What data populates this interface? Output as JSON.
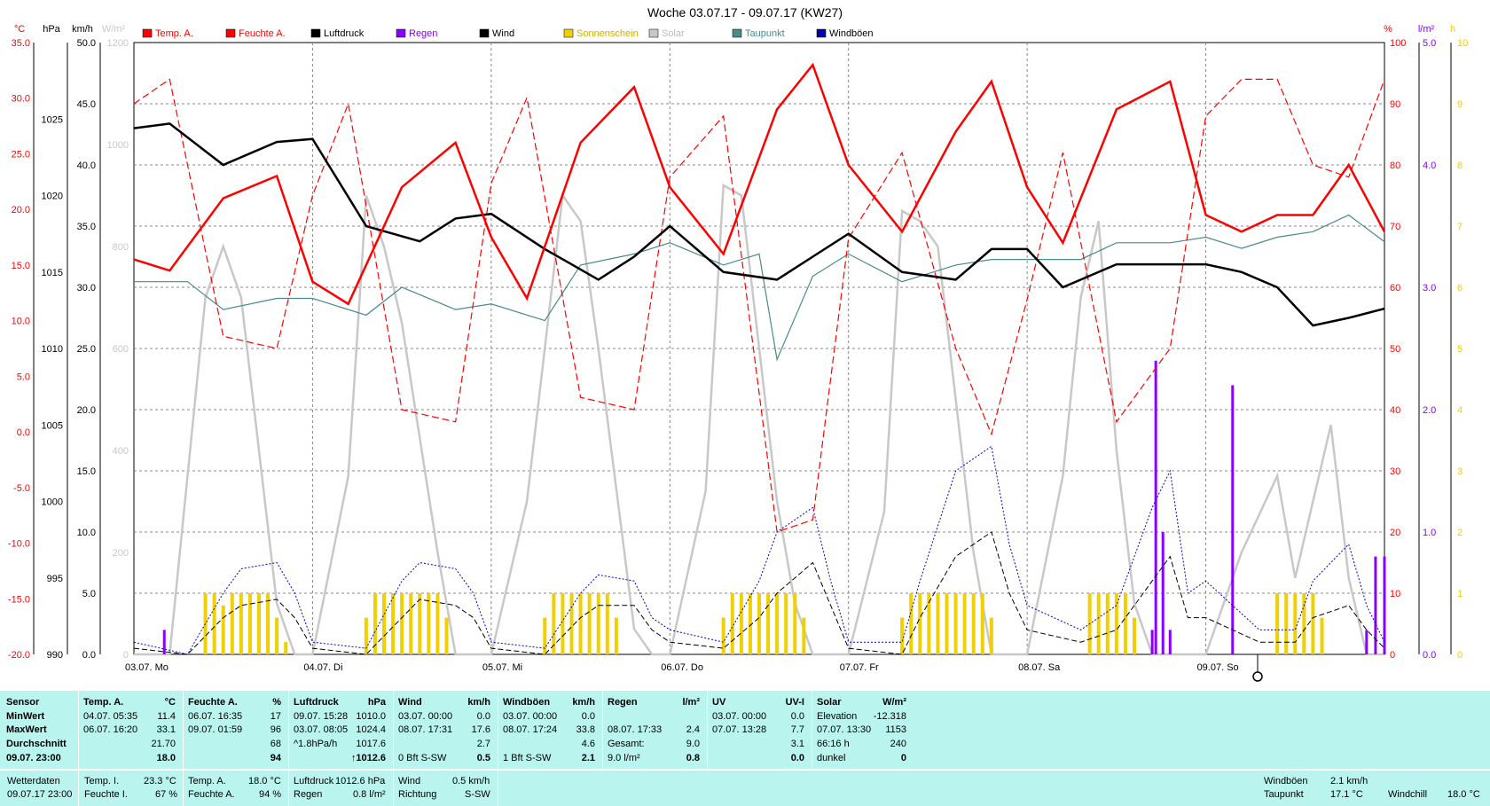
{
  "chart_data": {
    "type": "line",
    "title": "Woche 03.07.17 - 09.07.17 (KW27)",
    "x_axis": {
      "range": [
        0,
        7
      ],
      "day_labels": [
        "03.07. Mo",
        "04.07. Di",
        "05.07. Mi",
        "06.07. Do",
        "07.07. Fr",
        "08.07. Sa",
        "09.07. So"
      ]
    },
    "axes": {
      "temp": {
        "unit": "°C",
        "range": [
          -20,
          35
        ],
        "ticks": [
          "35.0",
          "30.0",
          "25.0",
          "20.0",
          "15.0",
          "10.0",
          "5.0",
          "0.0",
          "-5.0",
          "-10.0",
          "-15.0",
          "-20.0"
        ]
      },
      "press": {
        "unit": "hPa",
        "range": [
          990,
          1030
        ],
        "ticks": [
          "1025",
          "1020",
          "1015",
          "1010",
          "1005",
          "1000",
          "995",
          "990"
        ]
      },
      "wind": {
        "unit": "km/h",
        "range": [
          0,
          50
        ],
        "ticks": [
          "50.0",
          "45.0",
          "40.0",
          "35.0",
          "30.0",
          "25.0",
          "20.0",
          "15.0",
          "10.0",
          "5.0",
          "0.0"
        ]
      },
      "solar": {
        "unit": "W/m²",
        "range": [
          0,
          1200
        ],
        "ticks": [
          "1200",
          "1000",
          "800",
          "600",
          "400",
          "200",
          "0"
        ]
      },
      "hum": {
        "unit": "%",
        "range": [
          0,
          100
        ],
        "ticks": [
          "100",
          "90",
          "80",
          "70",
          "60",
          "50",
          "40",
          "30",
          "20",
          "10",
          "0"
        ]
      },
      "rain": {
        "unit": "l/m²",
        "range": [
          0,
          5
        ],
        "ticks": [
          "5.0",
          "4.0",
          "3.0",
          "2.0",
          "1.0",
          "0.0"
        ]
      },
      "sun": {
        "unit": "h",
        "range": [
          0,
          10
        ],
        "ticks": [
          "10",
          "9",
          "8",
          "7",
          "6",
          "5",
          "4",
          "3",
          "2",
          "1",
          "0"
        ]
      }
    },
    "legend": [
      {
        "name": "Temp. A.",
        "color": "#ff0000"
      },
      {
        "name": "Feuchte A.",
        "color": "#ff0000"
      },
      {
        "name": "Luftdruck",
        "color": "#000000"
      },
      {
        "name": "Regen",
        "color": "#8800ff"
      },
      {
        "name": "Wind",
        "color": "#000000"
      },
      {
        "name": "Sonnenschein",
        "color": "#f0d000"
      },
      {
        "name": "Solar",
        "color": "#c8c8c8"
      },
      {
        "name": "Taupunkt",
        "color": "#4a8a8a"
      },
      {
        "name": "Windböen",
        "color": "#0000aa"
      }
    ],
    "series": [
      {
        "name": "Temp. A.",
        "unit": "°C",
        "x": [
          0,
          0.2,
          0.5,
          0.8,
          1.0,
          1.2,
          1.5,
          1.8,
          2.0,
          2.2,
          2.5,
          2.8,
          3.0,
          3.3,
          3.6,
          3.8,
          4.0,
          4.3,
          4.6,
          4.8,
          5.0,
          5.2,
          5.5,
          5.8,
          6.0,
          6.2,
          6.4,
          6.6,
          6.8,
          7.0
        ],
        "y": [
          15.5,
          14.5,
          21,
          23,
          13.5,
          11.5,
          22,
          26,
          17.5,
          12,
          26,
          31,
          22,
          16,
          29,
          33,
          24,
          18,
          27,
          31.5,
          22,
          17,
          29,
          31.5,
          19.5,
          18,
          19.5,
          19.5,
          24,
          18
        ]
      },
      {
        "name": "Feuchte A.",
        "unit": "%",
        "x": [
          0,
          0.2,
          0.5,
          0.8,
          1.0,
          1.2,
          1.5,
          1.8,
          2.0,
          2.2,
          2.5,
          2.8,
          3.0,
          3.3,
          3.6,
          3.8,
          4.0,
          4.3,
          4.6,
          4.8,
          5.0,
          5.2,
          5.5,
          5.8,
          6.0,
          6.2,
          6.4,
          6.6,
          6.8,
          7.0
        ],
        "y": [
          90,
          94,
          52,
          50,
          75,
          90,
          40,
          38,
          77,
          91,
          42,
          40,
          78,
          88,
          20,
          22,
          68,
          82,
          50,
          36,
          58,
          82,
          38,
          50,
          88,
          94,
          94,
          80,
          78,
          94
        ]
      },
      {
        "name": "Luftdruck",
        "unit": "hPa",
        "x": [
          0,
          0.2,
          0.5,
          0.8,
          1.0,
          1.3,
          1.6,
          1.8,
          2.0,
          2.3,
          2.6,
          2.8,
          3.0,
          3.3,
          3.6,
          3.8,
          4.0,
          4.3,
          4.6,
          4.8,
          5.0,
          5.2,
          5.5,
          5.8,
          6.0,
          6.2,
          6.4,
          6.6,
          6.8,
          7.0
        ],
        "y": [
          1024.4,
          1024.7,
          1022,
          1023.5,
          1023.7,
          1018,
          1017,
          1018.5,
          1018.8,
          1016.5,
          1014.5,
          1016,
          1018,
          1015,
          1014.5,
          1016,
          1017.5,
          1015,
          1014.5,
          1016.5,
          1016.5,
          1014,
          1015.5,
          1015.5,
          1015.5,
          1015,
          1014,
          1011.5,
          1012,
          1012.6
        ]
      },
      {
        "name": "Wind",
        "unit": "km/h",
        "x": [
          0,
          0.3,
          0.5,
          0.6,
          0.8,
          0.9,
          1.0,
          1.3,
          1.5,
          1.6,
          1.8,
          1.9,
          2.0,
          2.3,
          2.5,
          2.6,
          2.8,
          2.9,
          3.0,
          3.3,
          3.5,
          3.6,
          3.8,
          3.9,
          4.0,
          4.3,
          4.4,
          4.6,
          4.8,
          4.9,
          5.0,
          5.3,
          5.5,
          5.7,
          5.8,
          5.9,
          6.0,
          6.3,
          6.5,
          6.6,
          6.8,
          6.9,
          7.0
        ],
        "y": [
          0.5,
          0,
          3,
          4,
          4.5,
          3,
          0.5,
          0,
          3,
          4.5,
          4,
          3,
          0.5,
          0,
          3,
          4,
          4,
          2,
          1,
          0.5,
          3,
          5,
          7.5,
          4,
          0.5,
          0,
          3,
          8,
          10,
          5,
          2,
          1,
          2,
          6,
          8,
          3,
          3,
          1,
          1,
          3,
          4,
          2,
          0.5
        ]
      },
      {
        "name": "Windböen",
        "unit": "km/h",
        "x": [
          0,
          0.3,
          0.5,
          0.6,
          0.8,
          0.9,
          1.0,
          1.3,
          1.5,
          1.6,
          1.8,
          1.9,
          2.0,
          2.3,
          2.5,
          2.6,
          2.8,
          2.9,
          3.0,
          3.3,
          3.5,
          3.6,
          3.8,
          3.9,
          4.0,
          4.3,
          4.4,
          4.6,
          4.8,
          4.9,
          5.0,
          5.3,
          5.5,
          5.7,
          5.8,
          5.9,
          6.0,
          6.3,
          6.5,
          6.6,
          6.8,
          6.9,
          7.0
        ],
        "y": [
          1,
          0,
          5,
          7,
          7.5,
          5,
          1,
          0.5,
          6,
          7.5,
          7,
          5,
          1,
          0.5,
          5,
          6.5,
          6,
          3,
          2,
          1,
          6,
          10,
          12,
          6,
          1,
          1,
          6,
          15,
          17,
          9,
          4,
          2,
          4,
          12,
          15,
          5,
          6,
          2,
          2,
          6,
          9,
          4,
          1
        ]
      },
      {
        "name": "Solar",
        "unit": "W/m²",
        "x": [
          0,
          0.2,
          0.4,
          0.5,
          0.6,
          0.7,
          0.8,
          0.9,
          1.0,
          1.2,
          1.3,
          1.4,
          1.5,
          1.7,
          1.8,
          1.9,
          2.0,
          2.2,
          2.4,
          2.5,
          2.6,
          2.8,
          2.9,
          3.0,
          3.2,
          3.3,
          3.4,
          3.5,
          3.6,
          3.7,
          3.8,
          3.9,
          4.0,
          4.2,
          4.3,
          4.4,
          4.5,
          4.6,
          4.7,
          4.8,
          4.9,
          5.0,
          5.2,
          5.3,
          5.4,
          5.5,
          5.6,
          5.7,
          5.8,
          5.9,
          6.0,
          6.2,
          6.4,
          6.5,
          6.6,
          6.7,
          6.8,
          6.9,
          7.0
        ],
        "y": [
          0,
          0,
          700,
          800,
          700,
          400,
          100,
          0,
          0,
          350,
          900,
          800,
          650,
          200,
          0,
          0,
          0,
          300,
          900,
          850,
          600,
          50,
          0,
          0,
          320,
          920,
          900,
          600,
          300,
          100,
          0,
          0,
          0,
          280,
          870,
          850,
          800,
          500,
          200,
          0,
          0,
          0,
          350,
          700,
          850,
          400,
          100,
          0,
          0,
          0,
          0,
          200,
          350,
          150,
          300,
          450,
          150,
          0,
          0
        ]
      },
      {
        "name": "Taupunkt",
        "unit": "°C",
        "x": [
          0,
          0.3,
          0.5,
          0.8,
          1.0,
          1.3,
          1.5,
          1.8,
          2.0,
          2.3,
          2.5,
          2.8,
          3.0,
          3.3,
          3.5,
          3.6,
          3.8,
          4.0,
          4.3,
          4.6,
          4.8,
          5.0,
          5.3,
          5.5,
          5.8,
          6.0,
          6.2,
          6.4,
          6.6,
          6.8,
          7.0
        ],
        "y": [
          13.5,
          13.5,
          11,
          12,
          12,
          10.5,
          13,
          11,
          11.5,
          10,
          15,
          16,
          17,
          15,
          16,
          6.5,
          14,
          16,
          13.5,
          15,
          15.5,
          15.5,
          15.5,
          17,
          17,
          17.5,
          16.5,
          17.5,
          18,
          19.5,
          17.1
        ]
      },
      {
        "name": "Regen",
        "unit": "l/m²",
        "x": [
          0.17,
          5.7,
          5.72,
          5.76,
          5.8,
          6.15,
          6.9,
          6.95,
          7.0
        ],
        "y": [
          0.2,
          0.2,
          2.4,
          1.0,
          0.2,
          2.2,
          0.2,
          0.8,
          0.8
        ]
      },
      {
        "name": "Sonnenschein",
        "unit": "h",
        "x": [
          0.4,
          0.45,
          0.5,
          0.55,
          0.6,
          0.65,
          0.7,
          0.75,
          0.8,
          0.85,
          1.3,
          1.35,
          1.4,
          1.45,
          1.5,
          1.55,
          1.6,
          1.65,
          1.7,
          1.75,
          2.3,
          2.35,
          2.4,
          2.45,
          2.5,
          2.55,
          2.6,
          2.65,
          2.7,
          3.3,
          3.35,
          3.4,
          3.45,
          3.5,
          3.55,
          3.6,
          3.65,
          3.7,
          3.75,
          4.3,
          4.35,
          4.4,
          4.45,
          4.5,
          4.55,
          4.6,
          4.65,
          4.7,
          4.75,
          4.8,
          5.35,
          5.4,
          5.45,
          5.5,
          5.55,
          5.6,
          6.4,
          6.45,
          6.5,
          6.55,
          6.6,
          6.65
        ],
        "y": [
          1,
          1,
          0.8,
          1,
          1,
          1,
          1,
          1,
          0.6,
          0.2,
          0.6,
          1,
          1,
          1,
          1,
          1,
          1,
          1,
          1,
          0.6,
          0.6,
          1,
          1,
          1,
          1,
          1,
          1,
          1,
          0.6,
          0.6,
          1,
          1,
          1,
          1,
          1,
          1,
          1,
          1,
          0.6,
          0.6,
          1,
          1,
          1,
          1,
          1,
          1,
          1,
          1,
          1,
          0.6,
          1,
          1,
          1,
          1,
          1,
          0.6,
          1,
          1,
          1,
          1,
          1,
          0.6
        ]
      }
    ]
  },
  "stats": {
    "header": [
      "Sensor",
      "Temp. A.",
      "°C",
      "Feuchte A.",
      "%",
      "Luftdruck",
      "hPa",
      "Wind",
      "km/h",
      "Windböen",
      "km/h",
      "Regen",
      "l/m²",
      "UV",
      "UV-I",
      "Solar",
      "W/m²"
    ],
    "row_labels": [
      "MinWert",
      "MaxWert",
      "Durchschnitt",
      "09.07. 23:00"
    ],
    "temp": [
      [
        "04.07. 05:35",
        "11.4"
      ],
      [
        "06.07. 16:20",
        "33.1"
      ],
      [
        "",
        "21.70"
      ],
      [
        "",
        "18.0"
      ]
    ],
    "hum": [
      [
        "06.07. 16:35",
        "17"
      ],
      [
        "09.07. 01:59",
        "96"
      ],
      [
        "",
        "68"
      ],
      [
        "",
        "94"
      ]
    ],
    "press": [
      [
        "09.07. 15:28",
        "1010.0"
      ],
      [
        "03.07. 08:05",
        "1024.4"
      ],
      [
        "^1.8hPa/h",
        "1017.6"
      ],
      [
        "",
        "↑1012.6"
      ]
    ],
    "wind": [
      [
        "03.07. 00:00",
        "0.0"
      ],
      [
        "08.07. 17:31",
        "17.6"
      ],
      [
        "",
        "2.7"
      ],
      [
        "0 Bft S-SW",
        "0.5"
      ]
    ],
    "gust": [
      [
        "03.07. 00:00",
        "0.0"
      ],
      [
        "08.07. 17:24",
        "33.8"
      ],
      [
        "",
        "4.6"
      ],
      [
        "1 Bft S-SW",
        "2.1"
      ]
    ],
    "rain": [
      [
        "",
        ""
      ],
      [
        "08.07. 17:33",
        "2.4"
      ],
      [
        "Gesamt:",
        "9.0"
      ],
      [
        "9.0 l/m²",
        "0.8"
      ]
    ],
    "uv": [
      [
        "03.07. 00:00",
        "0.0"
      ],
      [
        "07.07. 13:28",
        "7.7"
      ],
      [
        "",
        "3.1"
      ],
      [
        "",
        "0.0"
      ]
    ],
    "solar": [
      [
        "Elevation",
        "-12.318"
      ],
      [
        "07.07. 13:30",
        "1153"
      ],
      [
        "66:16 h",
        "240"
      ],
      [
        "dunkel",
        "0"
      ]
    ]
  },
  "footer": {
    "wetterdaten": "Wetterdaten",
    "timestamp": "09.07.17 23:00",
    "temp_i_label": "Temp. I.",
    "temp_i": "23.3 °C",
    "feuchte_i_label": "Feuchte I.",
    "feuchte_i": "67 %",
    "temp_a_label": "Temp. A.",
    "temp_a": "18.0 °C",
    "feuchte_a_label": "Feuchte A.",
    "feuchte_a": "94 %",
    "luftdruck_label": "Luftdruck",
    "luftdruck": "1012.6 hPa",
    "regen_label": "Regen",
    "regen": "0.8 l/m²",
    "wind_label": "Wind",
    "wind": "0.5 km/h",
    "richtung_label": "Richtung",
    "richtung": "S-SW",
    "windboeen_label": "Windböen",
    "windboeen": "2.1 km/h",
    "taupunkt_label": "Taupunkt",
    "taupunkt": "17.1 °C",
    "windchill_label": "Windchill",
    "windchill": "18.0 °C"
  }
}
